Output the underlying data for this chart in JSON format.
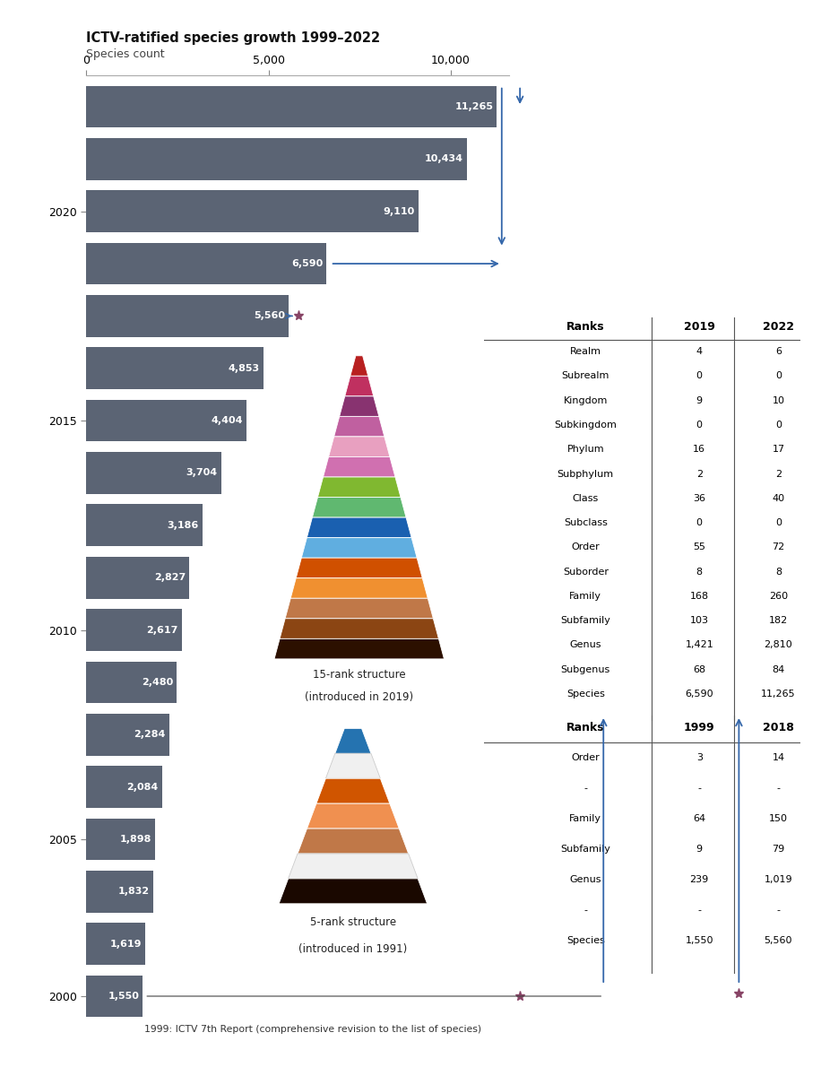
{
  "title": "ICTV-ratified species growth 1999–2022",
  "subtitle": "Species count",
  "bar_color": "#5b6474",
  "bg_color": "#ffffff",
  "bar_values": [
    1550,
    1619,
    1832,
    1898,
    2084,
    2284,
    2480,
    2617,
    2827,
    3186,
    3704,
    4404,
    4853,
    5560,
    6590,
    9110,
    10434,
    11265
  ],
  "bar_labels": [
    "1,550",
    "1,619",
    "1,832",
    "1,898",
    "2,084",
    "2,284",
    "2,480",
    "2,617",
    "2,827",
    "3,186",
    "3,704",
    "4,404",
    "4,853",
    "5,560",
    "6,590",
    "9,110",
    "10,434",
    "11,265"
  ],
  "ytick_positions": [
    0,
    3,
    7,
    11,
    15
  ],
  "ytick_labels": [
    "2000",
    "2005",
    "2010",
    "2015",
    "2020"
  ],
  "xlim_max": 11600,
  "xticks": [
    0,
    5000,
    10000
  ],
  "xtick_labels": [
    "0",
    "5,000",
    "10,000"
  ],
  "pyramid15_colors": [
    "#b82020",
    "#c03060",
    "#883370",
    "#c060a0",
    "#e8a0c0",
    "#d070b0",
    "#80b830",
    "#60b870",
    "#1a60b0",
    "#60aee0",
    "#d05000",
    "#f09030",
    "#c07848",
    "#8B4513",
    "#2c1000"
  ],
  "pyramid5_colors": [
    "#2573b0",
    "#f0f0f0",
    "#d05500",
    "#f09050",
    "#c07848",
    "#f0f0f0",
    "#1a0800"
  ],
  "table15_ranks": [
    "Realm",
    "Subrealm",
    "Kingdom",
    "Subkingdom",
    "Phylum",
    "Subphylum",
    "Class",
    "Subclass",
    "Order",
    "Suborder",
    "Family",
    "Subfamily",
    "Genus",
    "Subgenus",
    "Species"
  ],
  "table15_2019": [
    "4",
    "0",
    "9",
    "0",
    "16",
    "2",
    "36",
    "0",
    "55",
    "8",
    "168",
    "103",
    "1,421",
    "68",
    "6,590"
  ],
  "table15_2022": [
    "6",
    "0",
    "10",
    "0",
    "17",
    "2",
    "40",
    "0",
    "72",
    "8",
    "260",
    "182",
    "2,810",
    "84",
    "11,265"
  ],
  "table5_ranks": [
    "Order",
    "-",
    "Family",
    "Subfamily",
    "Genus",
    "-",
    "Species"
  ],
  "table5_1999": [
    "3",
    "-",
    "64",
    "9",
    "239",
    "-",
    "1,550"
  ],
  "table5_2018": [
    "14",
    "-",
    "150",
    "79",
    "1,019",
    "-",
    "5,560"
  ],
  "arrow_color": "#3366aa",
  "star_color": "#884466",
  "bottom_note": "1999: ICTV 7th Report (comprehensive revision to the list of species)"
}
